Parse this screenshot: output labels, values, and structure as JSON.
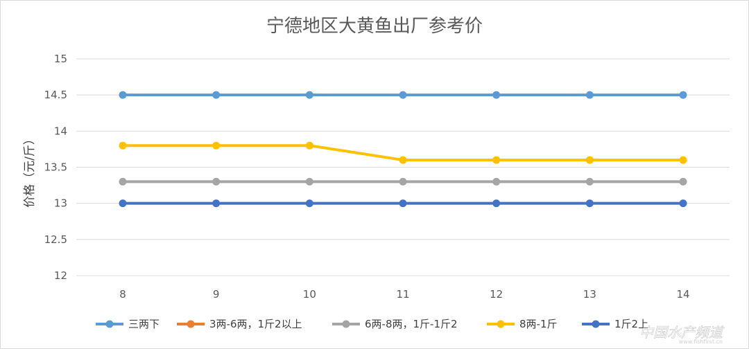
{
  "chart_data": {
    "type": "line",
    "title": "宁德地区大黄鱼出厂参考价",
    "xlabel": "",
    "ylabel": "价格（元/斤）",
    "x": [
      8,
      9,
      10,
      11,
      12,
      13,
      14
    ],
    "ylim": [
      12,
      15
    ],
    "yticks": [
      "12",
      "12.5",
      "13",
      "13.5",
      "14",
      "14.5",
      "15"
    ],
    "grid": true,
    "legend_position": "bottom",
    "series": [
      {
        "name": "三两下",
        "color": "#5b9bd5",
        "values": [
          14.5,
          14.5,
          14.5,
          14.5,
          14.5,
          14.5,
          14.5
        ]
      },
      {
        "name": "3两-6两，1斤2以上",
        "color": "#ed7d31",
        "values": [
          null,
          null,
          null,
          null,
          null,
          null,
          null
        ]
      },
      {
        "name": "6两-8两，1斤-1斤2",
        "color": "#a5a5a5",
        "values": [
          13.3,
          13.3,
          13.3,
          13.3,
          13.3,
          13.3,
          13.3
        ]
      },
      {
        "name": "8两-1斤",
        "color": "#ffc000",
        "values": [
          13.8,
          13.8,
          13.8,
          13.6,
          13.6,
          13.6,
          13.6
        ]
      },
      {
        "name": "1斤2上",
        "color": "#4472c4",
        "values": [
          13.0,
          13.0,
          13.0,
          13.0,
          13.0,
          13.0,
          13.0
        ]
      }
    ]
  },
  "watermark": {
    "text": "中国水产频道",
    "sub": "www.fishfirst.cn"
  }
}
